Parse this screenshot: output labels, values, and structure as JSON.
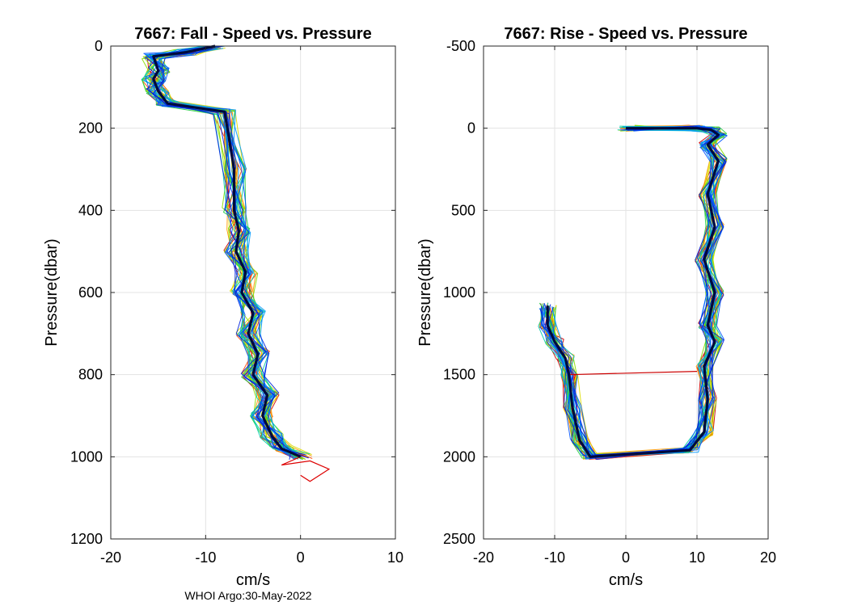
{
  "footer": "WHOI Argo:30-May-2022",
  "chart_data": [
    {
      "type": "line",
      "title": "7667: Fall - Speed vs. Pressure",
      "xlabel": "cm/s",
      "ylabel": "Pressure(dbar)",
      "xlim": [
        -20,
        10
      ],
      "ylim": [
        0,
        1200
      ],
      "y_reversed": true,
      "xticks": [
        -20,
        -10,
        0,
        10
      ],
      "yticks": [
        0,
        200,
        400,
        600,
        800,
        1000,
        1200
      ],
      "grid": true,
      "mean_profile": {
        "name": "mean",
        "color": "#000a3c",
        "x": [
          -9,
          -12,
          -15.5,
          -15,
          -15.5,
          -15,
          -14,
          -8,
          -7,
          -7,
          -6.5,
          -6.8,
          -5.8,
          -6.2,
          -5,
          -5.5,
          -4.5,
          -5,
          -3.5,
          -4,
          -3,
          -2,
          0
        ],
        "y": [
          0,
          15,
          25,
          60,
          80,
          110,
          140,
          160,
          300,
          400,
          450,
          500,
          550,
          600,
          650,
          700,
          750,
          800,
          850,
          900,
          950,
          980,
          1000
        ]
      },
      "colormap_series_colors": [
        "#cc0000",
        "#ff4400",
        "#ff9900",
        "#dddd00",
        "#88dd00",
        "#22cc44",
        "#00ccaa",
        "#0099ff",
        "#0055ff",
        "#0022dd"
      ],
      "outlier_tail": {
        "color": "#dd0000",
        "x": [
          0,
          -2,
          1,
          3,
          1,
          0
        ],
        "y": [
          1000,
          1020,
          1010,
          1030,
          1060,
          1045
        ]
      }
    },
    {
      "type": "line",
      "title": "7667: Rise - Speed vs. Pressure",
      "xlabel": "cm/s",
      "ylabel": "Pressure(dbar)",
      "xlim": [
        -20,
        20
      ],
      "ylim": [
        -500,
        2500
      ],
      "y_reversed": true,
      "xticks": [
        -20,
        -10,
        0,
        10,
        20
      ],
      "yticks": [
        -500,
        0,
        500,
        1000,
        1500,
        2000,
        2500
      ],
      "grid": true,
      "mean_profile": {
        "name": "mean",
        "color": "#000a3c",
        "x": [
          -11,
          -11,
          -10,
          -8.5,
          -8,
          -7.5,
          -6.5,
          -5,
          9,
          11,
          11.5,
          11,
          12.5,
          11.5,
          12.5,
          11,
          12.5,
          11.5,
          13,
          11.5,
          13,
          12,
          10,
          0
        ],
        "y": [
          1080,
          1200,
          1300,
          1400,
          1500,
          1700,
          1900,
          2000,
          1960,
          1850,
          1650,
          1450,
          1300,
          1200,
          1000,
          800,
          600,
          400,
          200,
          100,
          40,
          10,
          0,
          0
        ]
      },
      "colormap_series_colors": [
        "#cc0000",
        "#ff4400",
        "#ff9900",
        "#dddd00",
        "#88dd00",
        "#22cc44",
        "#00ccaa",
        "#0099ff",
        "#0055ff",
        "#0022dd"
      ],
      "outlier_crossover": {
        "color": "#cc0000",
        "x": [
          -8,
          10
        ],
        "y": [
          1500,
          1480
        ]
      }
    }
  ]
}
